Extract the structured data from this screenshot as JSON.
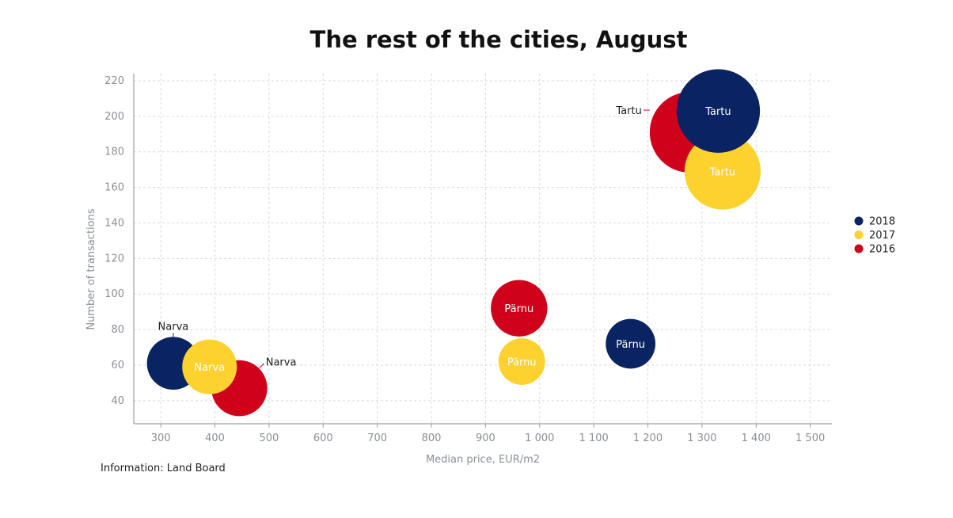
{
  "chart_data": {
    "type": "bubble",
    "title": "The rest of the cities, August",
    "xlabel": "Median price, EUR/m2",
    "ylabel": "Number of transactions",
    "xlim": [
      250,
      1540
    ],
    "ylim": [
      27,
      224
    ],
    "x_ticks": [
      300,
      400,
      500,
      600,
      700,
      800,
      900,
      1000,
      1100,
      1200,
      1300,
      1400,
      1500
    ],
    "x_tick_labels": [
      "300",
      "400",
      "500",
      "600",
      "700",
      "800",
      "900",
      "1 000",
      "1 100",
      "1 200",
      "1 300",
      "1 400",
      "1 500"
    ],
    "y_ticks": [
      40,
      60,
      80,
      100,
      120,
      140,
      160,
      180,
      200,
      220
    ],
    "grid": true,
    "legend_position": "right",
    "source": "Information: Land Board",
    "series": [
      {
        "name": "2016",
        "color": "#D0021B",
        "points": [
          {
            "city": "Narva",
            "x": 445,
            "y": 47,
            "size": 91,
            "label_position": "outside-right"
          },
          {
            "city": "Pärnu",
            "x": 962,
            "y": 92,
            "size": 93,
            "label_position": "inside"
          },
          {
            "city": "Tartu",
            "x": 1278,
            "y": 191,
            "size": 190,
            "label_position": "outside-left"
          }
        ]
      },
      {
        "name": "2017",
        "color": "#FDD12E",
        "points": [
          {
            "city": "Narva",
            "x": 390,
            "y": 59,
            "size": 87,
            "label_position": "inside"
          },
          {
            "city": "Pärnu",
            "x": 967,
            "y": 62,
            "size": 63,
            "label_position": "inside"
          },
          {
            "city": "Tartu",
            "x": 1338,
            "y": 169,
            "size": 169,
            "label_position": "inside"
          }
        ]
      },
      {
        "name": "2018",
        "color": "#0A2463",
        "points": [
          {
            "city": "Narva",
            "x": 323,
            "y": 61,
            "size": 81,
            "label_position": "outside-top"
          },
          {
            "city": "Pärnu",
            "x": 1168,
            "y": 72,
            "size": 72,
            "label_position": "inside"
          },
          {
            "city": "Tartu",
            "x": 1330,
            "y": 203,
            "size": 203,
            "label_position": "inside"
          }
        ]
      }
    ],
    "draw_order": [
      [
        "2018",
        "Narva"
      ],
      [
        "2016",
        "Narva"
      ],
      [
        "2017",
        "Narva"
      ],
      [
        "2016",
        "Pärnu"
      ],
      [
        "2017",
        "Pärnu"
      ],
      [
        "2018",
        "Pärnu"
      ],
      [
        "2016",
        "Tartu"
      ],
      [
        "2017",
        "Tartu"
      ],
      [
        "2018",
        "Tartu"
      ]
    ],
    "legend": [
      "2018",
      "2017",
      "2016"
    ]
  }
}
